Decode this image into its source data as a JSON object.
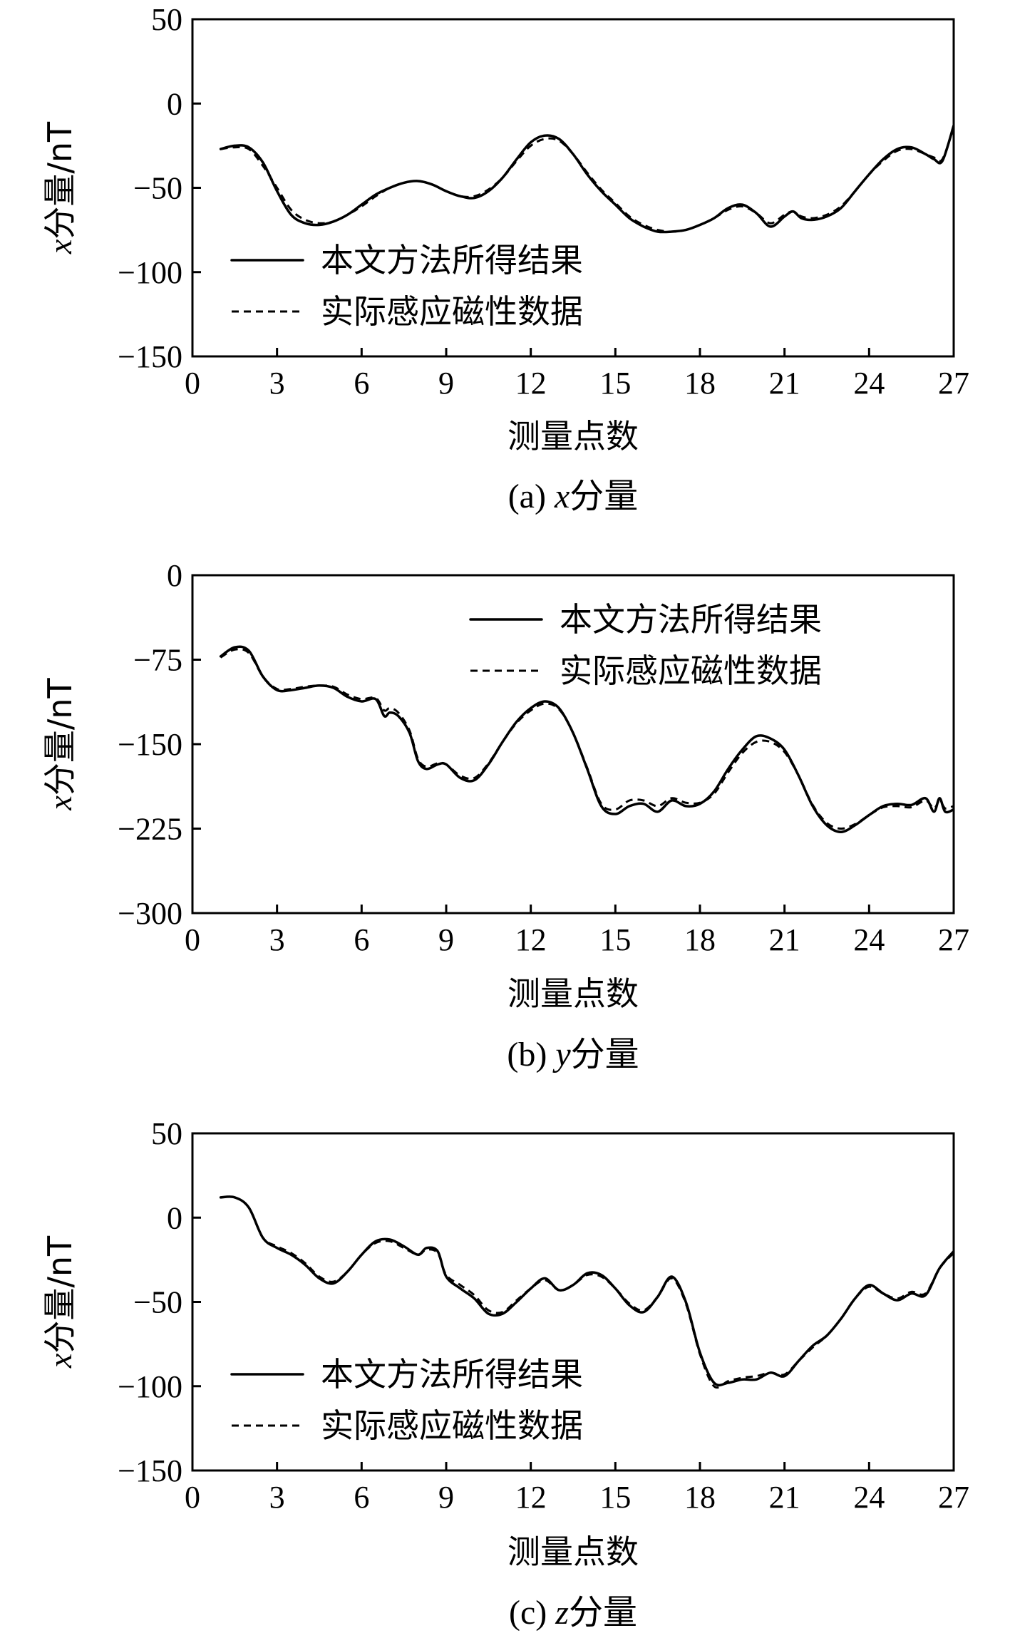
{
  "chart_data": [
    {
      "type": "line",
      "caption_prefix": "(a) ",
      "caption_var": "x",
      "caption_suffix": "分量",
      "ylabel_var": "x",
      "ylabel_text": "分量/nT",
      "xlabel": "测量点数",
      "xlim": [
        0,
        27
      ],
      "ylim": [
        -150,
        50
      ],
      "xticks": [
        0,
        3,
        6,
        9,
        12,
        15,
        18,
        21,
        24,
        27
      ],
      "yticks": [
        50,
        0,
        -50,
        -100,
        -150
      ],
      "ytick_labels": [
        "50",
        "0",
        "−50",
        "−100",
        "−150"
      ],
      "legend_position": "bottom-left",
      "series": [
        {
          "name": "本文方法所得结果",
          "style": "solid",
          "x": [
            1,
            1.5,
            2,
            2.5,
            3,
            3.5,
            4,
            4.5,
            5,
            5.5,
            6,
            6.5,
            7,
            7.5,
            8,
            8.5,
            9,
            9.5,
            10,
            10.5,
            11,
            11.5,
            12,
            12.5,
            13,
            13.5,
            14,
            14.5,
            15,
            15.5,
            16,
            16.5,
            17,
            17.5,
            18,
            18.5,
            19,
            19.5,
            20,
            20.5,
            21,
            21.3,
            21.6,
            22,
            22.5,
            23,
            23.5,
            24,
            24.5,
            25,
            25.5,
            26,
            26.3,
            26.6,
            27
          ],
          "y": [
            -27,
            -25,
            -26,
            -35,
            -52,
            -66,
            -71,
            -72,
            -70,
            -66,
            -60,
            -54,
            -50,
            -47,
            -46,
            -48,
            -52,
            -55,
            -56,
            -52,
            -44,
            -33,
            -23,
            -19,
            -21,
            -30,
            -42,
            -52,
            -60,
            -68,
            -73,
            -76,
            -76,
            -75,
            -72,
            -68,
            -62,
            -60,
            -65,
            -73,
            -67,
            -64,
            -68,
            -69,
            -67,
            -62,
            -52,
            -42,
            -33,
            -27,
            -26,
            -30,
            -33,
            -34,
            -13
          ]
        },
        {
          "name": "实际感应磁性数据",
          "style": "dashed",
          "x": [
            1,
            1.5,
            2,
            2.5,
            3,
            3.5,
            4,
            4.5,
            5,
            5.5,
            6,
            6.5,
            7,
            7.5,
            8,
            8.5,
            9,
            9.5,
            10,
            10.5,
            11,
            11.5,
            12,
            12.5,
            13,
            13.5,
            14,
            14.5,
            15,
            15.5,
            16,
            16.5,
            17,
            17.5,
            18,
            18.5,
            19,
            19.5,
            20,
            20.5,
            21,
            21.3,
            21.6,
            22,
            22.5,
            23,
            23.5,
            24,
            24.5,
            25,
            25.5,
            26,
            26.3,
            26.6,
            27
          ],
          "y": [
            -27,
            -26,
            -27,
            -37,
            -50,
            -63,
            -69,
            -71,
            -70,
            -66,
            -61,
            -55,
            -50,
            -47,
            -46,
            -48,
            -52,
            -55,
            -55,
            -51,
            -44,
            -34,
            -25,
            -21,
            -22,
            -30,
            -41,
            -51,
            -59,
            -67,
            -72,
            -75,
            -76,
            -75,
            -72,
            -68,
            -63,
            -61,
            -65,
            -71,
            -66,
            -64,
            -67,
            -68,
            -66,
            -61,
            -52,
            -42,
            -34,
            -28,
            -27,
            -30,
            -32,
            -33,
            -14
          ]
        }
      ]
    },
    {
      "type": "line",
      "caption_prefix": "(b) ",
      "caption_var": "y",
      "caption_suffix": "分量",
      "ylabel_var": "x",
      "ylabel_text": "分量/nT",
      "xlabel": "测量点数",
      "xlim": [
        0,
        27
      ],
      "ylim": [
        -300,
        0
      ],
      "xticks": [
        0,
        3,
        6,
        9,
        12,
        15,
        18,
        21,
        24,
        27
      ],
      "yticks": [
        0,
        -75,
        -150,
        -225,
        -300
      ],
      "ytick_labels": [
        "0",
        "−75",
        "−150",
        "−225",
        "−300"
      ],
      "legend_position": "top-right",
      "series": [
        {
          "name": "本文方法所得结果",
          "style": "solid",
          "x": [
            1,
            1.5,
            2,
            2.5,
            3,
            3.5,
            4,
            4.5,
            5,
            5.5,
            6,
            6.5,
            6.8,
            7,
            7.3,
            7.7,
            8,
            8.3,
            8.7,
            9,
            9.5,
            10,
            10.5,
            11,
            11.5,
            12,
            12.5,
            13,
            13.5,
            14,
            14.5,
            15,
            15.5,
            16,
            16.5,
            17,
            17.5,
            18,
            18.5,
            19,
            19.5,
            20,
            20.5,
            21,
            21.5,
            22,
            22.5,
            23,
            23.5,
            24,
            24.5,
            25,
            25.5,
            26,
            26.3,
            26.5,
            26.7,
            27
          ],
          "y": [
            -72,
            -64,
            -67,
            -90,
            -102,
            -102,
            -100,
            -98,
            -100,
            -108,
            -112,
            -110,
            -125,
            -122,
            -125,
            -140,
            -165,
            -172,
            -168,
            -168,
            -180,
            -182,
            -168,
            -148,
            -130,
            -118,
            -112,
            -118,
            -140,
            -172,
            -205,
            -212,
            -205,
            -203,
            -210,
            -200,
            -205,
            -203,
            -192,
            -172,
            -155,
            -143,
            -145,
            -155,
            -178,
            -205,
            -222,
            -228,
            -222,
            -213,
            -205,
            -203,
            -204,
            -198,
            -210,
            -198,
            -210,
            -208
          ]
        },
        {
          "name": "实际感应磁性数据",
          "style": "dashed",
          "x": [
            1,
            1.5,
            2,
            2.5,
            3,
            3.5,
            4,
            4.5,
            5,
            5.5,
            6,
            6.5,
            6.8,
            7,
            7.3,
            7.7,
            8,
            8.3,
            8.7,
            9,
            9.5,
            10,
            10.5,
            11,
            11.5,
            12,
            12.5,
            13,
            13.5,
            14,
            14.5,
            15,
            15.5,
            16,
            16.5,
            17,
            17.5,
            18,
            18.5,
            19,
            19.5,
            20,
            20.5,
            21,
            21.5,
            22,
            22.5,
            23,
            23.5,
            24,
            24.5,
            25,
            25.5,
            26,
            26.3,
            26.5,
            26.7,
            27
          ],
          "y": [
            -73,
            -66,
            -69,
            -90,
            -101,
            -101,
            -99,
            -98,
            -99,
            -106,
            -110,
            -109,
            -120,
            -118,
            -122,
            -138,
            -163,
            -170,
            -167,
            -168,
            -178,
            -180,
            -167,
            -148,
            -131,
            -120,
            -114,
            -119,
            -140,
            -171,
            -203,
            -208,
            -200,
            -200,
            -205,
            -198,
            -202,
            -202,
            -194,
            -175,
            -158,
            -148,
            -148,
            -157,
            -178,
            -204,
            -220,
            -225,
            -221,
            -213,
            -206,
            -205,
            -206,
            -200,
            -207,
            -200,
            -207,
            -205
          ]
        }
      ]
    },
    {
      "type": "line",
      "caption_prefix": "(c) ",
      "caption_var": "z",
      "caption_suffix": "分量",
      "ylabel_var": "x",
      "ylabel_text": "分量/nT",
      "xlabel": "测量点数",
      "xlim": [
        0,
        27
      ],
      "ylim": [
        -150,
        50
      ],
      "xticks": [
        0,
        3,
        6,
        9,
        12,
        15,
        18,
        21,
        24,
        27
      ],
      "yticks": [
        50,
        0,
        -50,
        -100,
        -150
      ],
      "ytick_labels": [
        "50",
        "0",
        "−50",
        "−100",
        "−150"
      ],
      "legend_position": "bottom-left",
      "series": [
        {
          "name": "本文方法所得结果",
          "style": "solid",
          "x": [
            1,
            1.5,
            2,
            2.5,
            3,
            3.5,
            4,
            4.5,
            5,
            5.5,
            6,
            6.5,
            7,
            7.5,
            8,
            8.3,
            8.7,
            9,
            9.5,
            10,
            10.5,
            11,
            11.5,
            12,
            12.5,
            13,
            13.5,
            14,
            14.5,
            15,
            15.5,
            16,
            16.5,
            17,
            17.5,
            18,
            18.5,
            19,
            19.5,
            20,
            20.5,
            21,
            21.5,
            22,
            22.5,
            23,
            23.5,
            24,
            24.5,
            25,
            25.5,
            26,
            26.5,
            27
          ],
          "y": [
            12,
            12,
            6,
            -12,
            -18,
            -22,
            -28,
            -36,
            -39,
            -32,
            -22,
            -14,
            -13,
            -17,
            -22,
            -18,
            -20,
            -35,
            -42,
            -48,
            -57,
            -57,
            -50,
            -42,
            -36,
            -43,
            -40,
            -33,
            -34,
            -42,
            -52,
            -56,
            -47,
            -35,
            -50,
            -80,
            -98,
            -98,
            -96,
            -96,
            -92,
            -94,
            -85,
            -76,
            -70,
            -60,
            -48,
            -40,
            -45,
            -49,
            -45,
            -46,
            -30,
            -20
          ]
        },
        {
          "name": "实际感应磁性数据",
          "style": "dashed",
          "x": [
            1,
            1.5,
            2,
            2.5,
            3,
            3.5,
            4,
            4.5,
            5,
            5.5,
            6,
            6.5,
            7,
            7.5,
            8,
            8.3,
            8.7,
            9,
            9.5,
            10,
            10.5,
            11,
            11.5,
            12,
            12.5,
            13,
            13.5,
            14,
            14.5,
            15,
            15.5,
            16,
            16.5,
            17,
            17.5,
            18,
            18.5,
            19,
            19.5,
            20,
            20.5,
            21,
            21.5,
            22,
            22.5,
            23,
            23.5,
            24,
            24.5,
            25,
            25.5,
            26,
            26.5,
            27
          ],
          "y": [
            12,
            12,
            6,
            -12,
            -17,
            -21,
            -27,
            -35,
            -38,
            -32,
            -22,
            -15,
            -14,
            -18,
            -22,
            -19,
            -21,
            -34,
            -40,
            -46,
            -55,
            -56,
            -49,
            -42,
            -37,
            -43,
            -40,
            -34,
            -35,
            -42,
            -51,
            -55,
            -47,
            -36,
            -51,
            -81,
            -100,
            -97,
            -95,
            -94,
            -92,
            -93,
            -85,
            -77,
            -70,
            -60,
            -48,
            -41,
            -45,
            -48,
            -44,
            -45,
            -30,
            -21
          ]
        }
      ]
    }
  ]
}
